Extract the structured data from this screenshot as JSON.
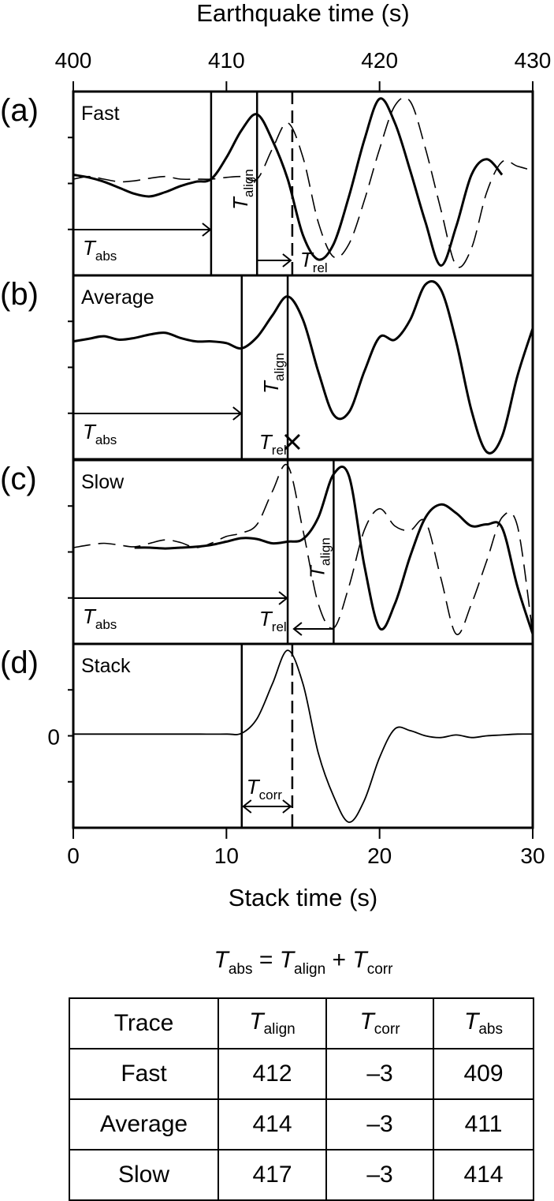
{
  "chart_data": {
    "type": "line",
    "top_axis": {
      "title": "Earthquake time (s)",
      "range": [
        400,
        430
      ],
      "ticks": [
        "400",
        "410",
        "420",
        "430"
      ]
    },
    "bottom_axis": {
      "title": "Stack time (s)",
      "range": [
        0,
        30
      ],
      "ticks": [
        "0",
        "10",
        "20",
        "30"
      ]
    },
    "zero_label": "0",
    "symbol_T": "T",
    "subs": {
      "abs": "abs",
      "align": "align",
      "rel": "rel",
      "corr": "corr"
    },
    "panels": [
      {
        "letter": "(a)",
        "name": "Fast",
        "t_abs": 9,
        "t_align": 12,
        "series": [
          {
            "style": "solid",
            "x": [
              0,
              1,
              2,
              3,
              4,
              5,
              6,
              7,
              8,
              9,
              10,
              11,
              12,
              13,
              14,
              15,
              16,
              17,
              18,
              19,
              20,
              21,
              22,
              23,
              24,
              25,
              26,
              27,
              28,
              29,
              30
            ],
            "y": [
              0.1,
              0.07,
              0.02,
              -0.05,
              -0.12,
              -0.15,
              -0.1,
              -0.03,
              0.02,
              0.05,
              0.3,
              0.62,
              0.8,
              0.5,
              0.05,
              -0.6,
              -0.88,
              -0.7,
              -0.15,
              0.5,
              0.98,
              0.7,
              0.15,
              -0.45,
              -0.95,
              -0.5,
              0.1,
              0.28,
              0.1,
              null,
              null
            ]
          },
          {
            "style": "dashed",
            "x": [
              0,
              1,
              2,
              3,
              4,
              5,
              6,
              7,
              8,
              9,
              10,
              11,
              12,
              13,
              14,
              15,
              16,
              17,
              18,
              19,
              20,
              21,
              22,
              23,
              24,
              25,
              26,
              27,
              28,
              29,
              30
            ],
            "y": [
              0.05,
              0.08,
              0.05,
              0.02,
              0.03,
              0.06,
              0.08,
              0.05,
              0.05,
              0.05,
              0.07,
              0.08,
              0.05,
              0.4,
              0.7,
              0.3,
              -0.45,
              -0.85,
              -0.7,
              -0.2,
              0.4,
              0.9,
              0.95,
              0.4,
              -0.3,
              -0.95,
              -0.75,
              -0.1,
              0.25,
              0.2,
              0.15
            ]
          }
        ]
      },
      {
        "letter": "(b)",
        "name": "Average",
        "t_abs": 11,
        "t_align": 14,
        "series": [
          {
            "style": "solid",
            "x": [
              0,
              1,
              2,
              3,
              4,
              5,
              6,
              7,
              8,
              9,
              10,
              11,
              12,
              13,
              14,
              15,
              16,
              17,
              18,
              19,
              20,
              21,
              22,
              23,
              24,
              25,
              26,
              27,
              28,
              29,
              30
            ],
            "y": [
              0.3,
              0.33,
              0.36,
              0.32,
              0.34,
              0.38,
              0.4,
              0.34,
              0.3,
              0.3,
              0.28,
              0.22,
              0.35,
              0.6,
              0.82,
              0.55,
              -0.05,
              -0.55,
              -0.52,
              -0.05,
              0.35,
              0.32,
              0.55,
              0.96,
              0.9,
              0.3,
              -0.5,
              -0.98,
              -0.8,
              -0.1,
              0.45
            ]
          }
        ]
      },
      {
        "letter": "(c)",
        "name": "Slow",
        "t_abs": 14,
        "t_align": 17,
        "series": [
          {
            "style": "solid",
            "x": [
              4,
              5,
              6,
              7,
              8,
              9,
              10,
              11,
              12,
              13,
              14,
              15,
              16,
              17,
              18,
              19,
              20,
              21,
              22,
              23,
              24,
              25,
              26,
              27,
              28,
              29,
              30
            ],
            "y": [
              0.05,
              0.05,
              0.04,
              0.05,
              0.06,
              0.08,
              0.12,
              0.16,
              0.15,
              0.1,
              0.12,
              0.15,
              0.4,
              0.9,
              0.88,
              -0.15,
              -0.88,
              -0.6,
              -0.05,
              0.4,
              0.55,
              0.45,
              0.3,
              0.32,
              0.28,
              -0.4,
              -0.95
            ]
          },
          {
            "style": "dashed",
            "x": [
              0,
              1,
              2,
              3,
              4,
              5,
              6,
              7,
              8,
              9,
              10,
              11,
              12,
              13,
              14,
              15,
              16,
              17,
              18,
              19,
              20,
              21,
              22,
              23,
              24,
              25,
              26,
              27,
              28,
              29,
              30
            ],
            "y": [
              0.05,
              0.08,
              0.1,
              0.08,
              0.06,
              0.1,
              0.14,
              0.11,
              0.05,
              0.1,
              0.18,
              0.22,
              0.32,
              0.7,
              1.0,
              0.25,
              -0.6,
              -0.88,
              -0.4,
              0.25,
              0.5,
              0.3,
              0.25,
              0.35,
              -0.3,
              -0.95,
              -0.6,
              -0.1,
              0.4,
              0.3,
              -0.95
            ]
          }
        ]
      },
      {
        "letter": "(d)",
        "name": "Stack",
        "t_abs": 11,
        "t_align": 14,
        "series": [
          {
            "style": "thin",
            "x": [
              0,
              2,
              4,
              6,
              8,
              10,
              11,
              12,
              13,
              14,
              15,
              16,
              17,
              18,
              19,
              20,
              21,
              22,
              23,
              24,
              25,
              26,
              27,
              28,
              29,
              30
            ],
            "y": [
              0.02,
              0.02,
              0.02,
              0.02,
              0.02,
              0.02,
              0.03,
              0.2,
              0.6,
              0.99,
              0.6,
              -0.2,
              -0.7,
              -1.0,
              -0.75,
              -0.25,
              0.08,
              0.06,
              0.0,
              -0.02,
              0.01,
              -0.02,
              0.0,
              0.01,
              0.02,
              0.02
            ]
          }
        ]
      }
    ],
    "equation": {
      "lhs_sub": "abs",
      "eq": "=",
      "term1_sub": "align",
      "plus": "+",
      "term2_sub": "corr"
    }
  },
  "table": {
    "header_first": "Trace",
    "header_subs": [
      "align",
      "corr",
      "abs"
    ],
    "rows": [
      {
        "trace": "Fast",
        "align": "412",
        "corr": "–3",
        "abs": "409"
      },
      {
        "trace": "Average",
        "align": "414",
        "corr": "–3",
        "abs": "411"
      },
      {
        "trace": "Slow",
        "align": "417",
        "corr": "–3",
        "abs": "414"
      }
    ]
  }
}
